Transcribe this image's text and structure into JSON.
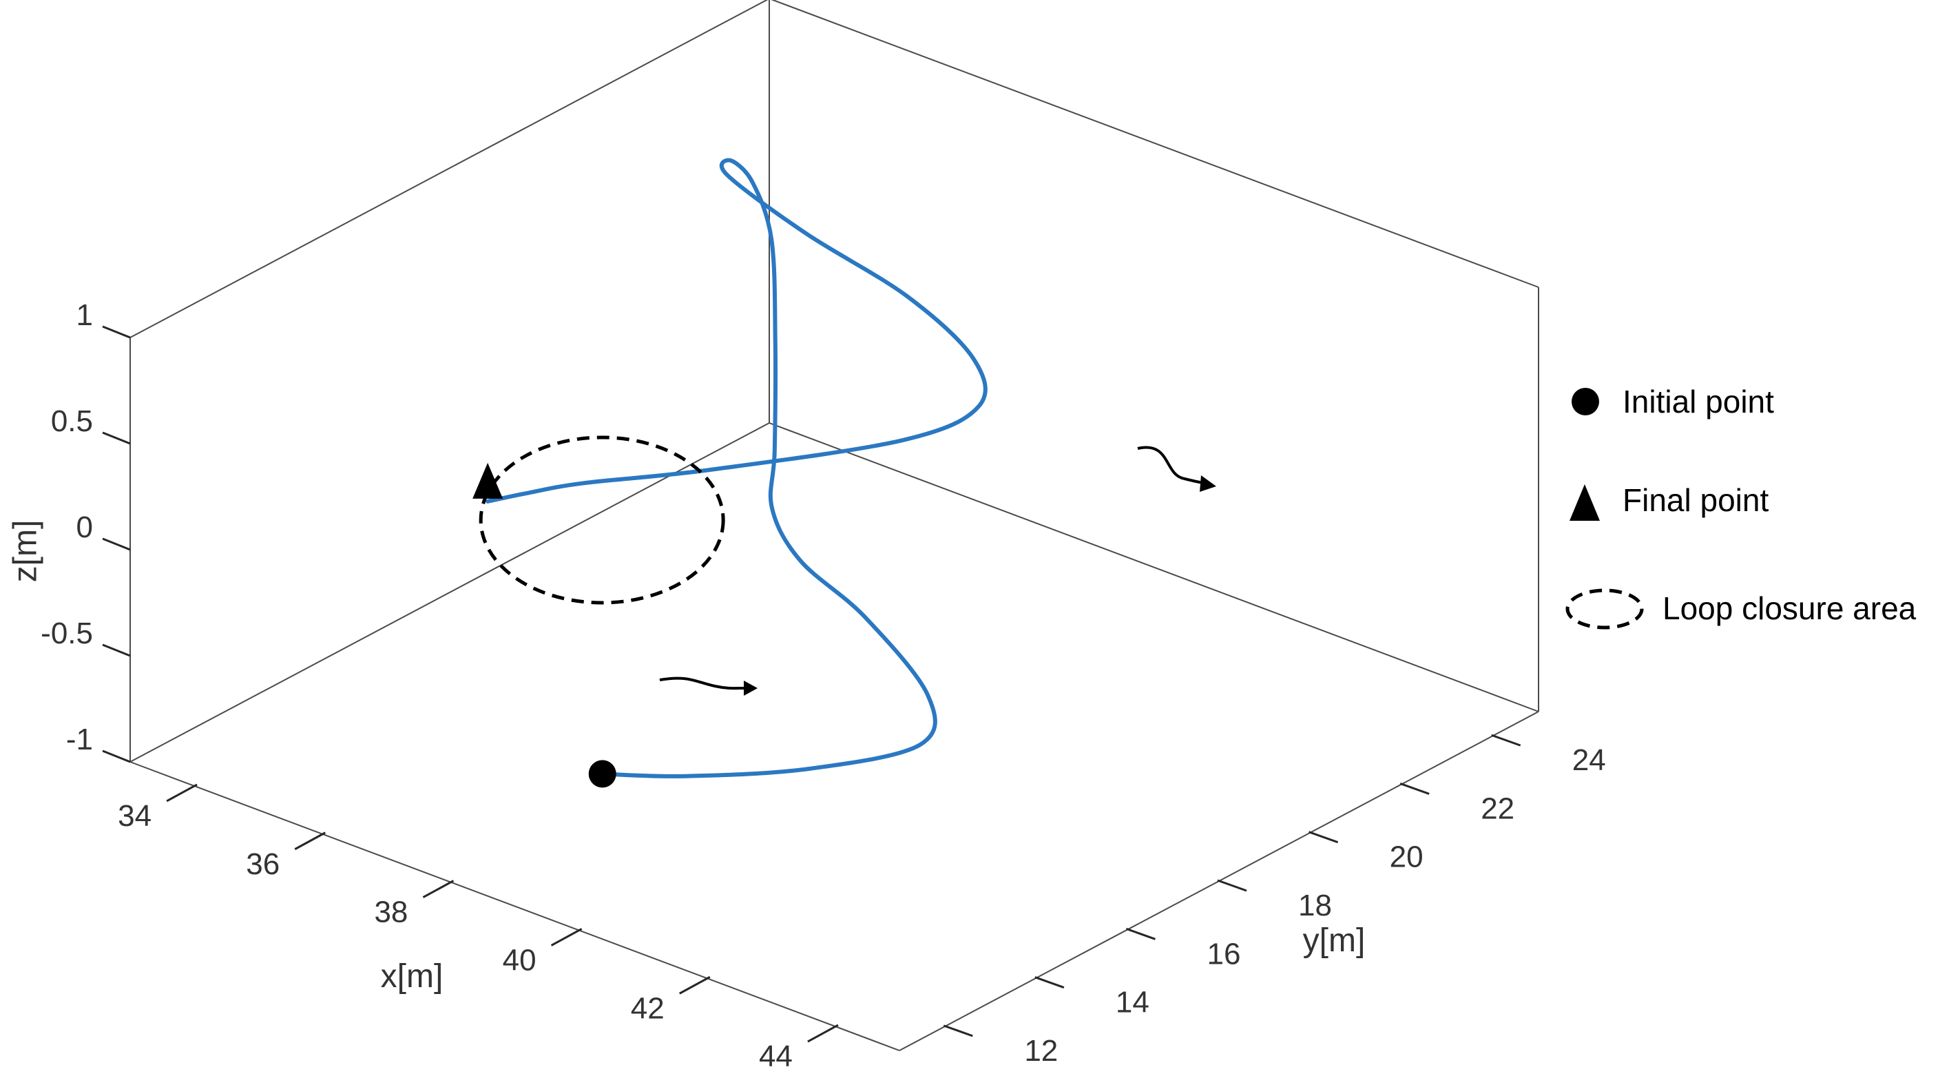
{
  "chart_data": {
    "type": "line",
    "projection": "3d",
    "xlabel": "x[m]",
    "ylabel": "y[m]",
    "zlabel": "z[m]",
    "xlim": [
      33,
      45
    ],
    "ylim": [
      11,
      25
    ],
    "zlim": [
      -1,
      1
    ],
    "xticks": [
      34,
      36,
      38,
      40,
      42,
      44
    ],
    "yticks": [
      12,
      14,
      16,
      18,
      20,
      22,
      24
    ],
    "zticks": [
      -1,
      -0.5,
      0,
      0.5,
      1
    ],
    "xtick_labels": [
      "34",
      "36",
      "38",
      "40",
      "42",
      "44"
    ],
    "ytick_labels": [
      "12",
      "14",
      "16",
      "18",
      "20",
      "22",
      "24"
    ],
    "ztick_labels": [
      "-1",
      "-0.5",
      "0",
      "0.5",
      "1"
    ],
    "grid": false,
    "legend_position": "right",
    "series": [
      {
        "color": "#2b78c2",
        "x": [
          38.8,
          39.6,
          40.6,
          41.2,
          40.6,
          39.4,
          38.4,
          37.6,
          37.0,
          35.8,
          34.6,
          33.8,
          33.6,
          34.2,
          36.0,
          38.0,
          39.6,
          40.4,
          40.0,
          38.2,
          36.8,
          36.2,
          35.8
        ],
        "y": [
          13.2,
          13.9,
          15.2,
          16.8,
          17.8,
          18.1,
          18.1,
          18.6,
          19.5,
          21.2,
          22.8,
          23.5,
          23.3,
          22.4,
          21.6,
          21.0,
          20.2,
          19.2,
          18.1,
          16.4,
          15.6,
          15.2,
          14.9
        ],
        "z": [
          -0.65,
          -0.65,
          -0.65,
          -0.65,
          -0.6,
          -0.4,
          -0.25,
          -0.15,
          -0.05,
          0.15,
          0.3,
          0.4,
          0.5,
          0.6,
          0.62,
          0.62,
          0.6,
          0.58,
          0.5,
          0.35,
          0.22,
          0.15,
          0.1
        ]
      }
    ],
    "initial_point": {
      "x": 38.8,
      "y": 13.2,
      "z": -0.65
    },
    "final_point": {
      "x": 35.8,
      "y": 14.9,
      "z": 0.1
    },
    "loop_closure_area": {
      "x": 36.8,
      "y": 16.0,
      "z": 0.0
    },
    "legend": [
      {
        "marker": "circle",
        "label": "Initial point"
      },
      {
        "marker": "triangle",
        "label": "Final point"
      },
      {
        "marker": "dashed-ellipse",
        "label": "Loop closure area"
      }
    ]
  }
}
